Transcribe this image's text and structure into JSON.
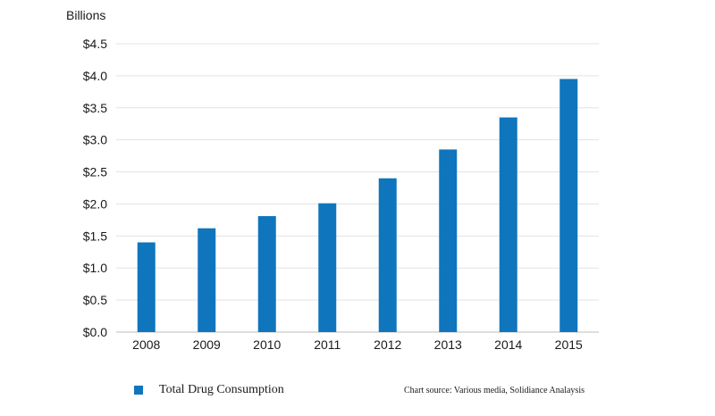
{
  "chart_data": {
    "type": "bar",
    "unit_label": "Billions",
    "categories": [
      "2008",
      "2009",
      "2010",
      "2011",
      "2012",
      "2013",
      "2014",
      "2015"
    ],
    "series": [
      {
        "name": "Total Drug Consumption",
        "values": [
          1.4,
          1.62,
          1.81,
          2.01,
          2.4,
          2.85,
          3.35,
          3.95
        ]
      }
    ],
    "ylim": [
      0,
      4.5
    ],
    "yticks": [
      0,
      0.5,
      1.0,
      1.5,
      2.0,
      2.5,
      3.0,
      3.5,
      4.0,
      4.5
    ],
    "ytick_labels": [
      "$0.0",
      "$0.5",
      "$1.0",
      "$1.5",
      "$2.0",
      "$2.5",
      "$3.0",
      "$3.5",
      "$4.0",
      "$4.5"
    ],
    "grid": true,
    "legend_position": "bottom-left",
    "bar_color": "#0f75bd",
    "source_text": "Chart source:  Various media, Solidiance Analaysis"
  }
}
